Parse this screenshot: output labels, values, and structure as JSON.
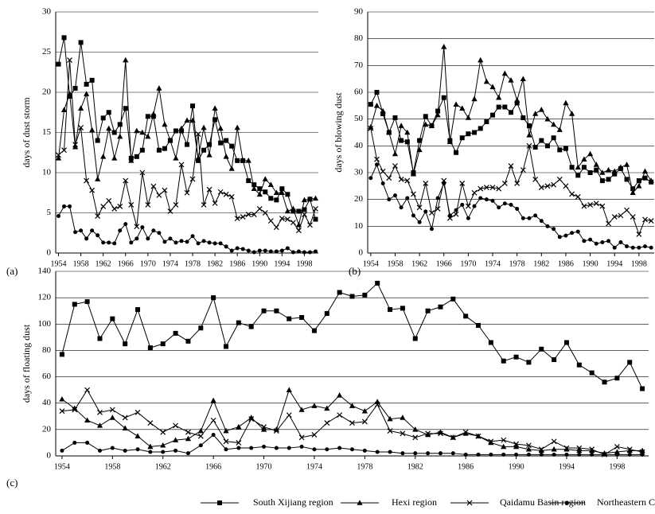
{
  "chart_data": [
    {
      "type": "line",
      "label": "(a)",
      "y_label": "days of dust storm",
      "x": [
        1954,
        1955,
        1956,
        1957,
        1958,
        1959,
        1960,
        1961,
        1962,
        1963,
        1964,
        1965,
        1966,
        1967,
        1968,
        1969,
        1970,
        1971,
        1972,
        1973,
        1974,
        1975,
        1976,
        1977,
        1978,
        1979,
        1980,
        1981,
        1982,
        1983,
        1984,
        1985,
        1986,
        1987,
        1988,
        1989,
        1990,
        1991,
        1992,
        1993,
        1994,
        1995,
        1996,
        1997,
        1998,
        1999,
        2000
      ],
      "xlim": [
        1953.5,
        2000.5
      ],
      "xticks": [
        1954,
        1958,
        1962,
        1966,
        1970,
        1974,
        1978,
        1982,
        1986,
        1990,
        1994,
        1998
      ],
      "ylim": [
        0,
        30
      ],
      "yticks": [
        0,
        5,
        10,
        15,
        20,
        25,
        30
      ],
      "grid": true,
      "series": [
        {
          "color": "#000000",
          "marker": "square",
          "values": [
            23.5,
            26.8,
            19.5,
            20.5,
            26.2,
            21,
            21.5,
            14,
            16.8,
            17.5,
            15,
            16,
            18,
            11.8,
            12,
            12.8,
            17,
            17,
            12.8,
            13,
            14,
            15.2,
            15.2,
            13.5,
            18.3,
            11.5,
            12.8,
            13.5,
            16.6,
            13.7,
            14,
            13.3,
            11.5,
            11.5,
            9,
            8.5,
            8,
            7.6,
            6.8,
            6.6,
            8,
            7.3,
            5.2,
            5.2,
            5.4,
            6.7,
            4.2
          ]
        },
        {
          "color": "#000000",
          "marker": "triangle",
          "values": [
            11.8,
            17.8,
            19.8,
            13.2,
            18,
            19.8,
            15.3,
            9.2,
            12,
            15.5,
            11.8,
            14.5,
            24,
            11.5,
            15.2,
            15,
            14.5,
            17.3,
            20.5,
            16,
            14,
            11.8,
            15.5,
            16.5,
            16.5,
            11.8,
            15.6,
            12.2,
            18,
            15.5,
            12,
            10.5,
            15.6,
            11.5,
            11.5,
            8,
            7.3,
            9.2,
            8.5,
            7.5,
            7.5,
            5.2,
            5.5,
            3.5,
            6.6,
            6.7,
            6.8
          ]
        },
        {
          "color": "#000000",
          "marker": "cross",
          "values": [
            12.2,
            12.8,
            24,
            13.5,
            15.6,
            9,
            7.8,
            4.6,
            5.8,
            6.5,
            5.5,
            5.8,
            9,
            6,
            3.3,
            10,
            6,
            8.3,
            7.2,
            7.8,
            5.2,
            6,
            11,
            7.5,
            9.2,
            14.8,
            6,
            7.9,
            6.2,
            7.6,
            7.3,
            7,
            4.3,
            4.5,
            4.8,
            4.8,
            5.5,
            5,
            4,
            3.2,
            4.3,
            4.2,
            3.8,
            2.8,
            4.8,
            3.5,
            5.5
          ]
        },
        {
          "color": "#000000",
          "marker": "circle",
          "values": [
            4.6,
            5.8,
            5.8,
            2.6,
            2.8,
            1.8,
            2.8,
            2.2,
            1.3,
            1.3,
            1.2,
            2.8,
            3.6,
            1.3,
            1.8,
            3.2,
            1.8,
            2.8,
            2.5,
            1.4,
            1.8,
            1.3,
            1.5,
            1.4,
            2.1,
            1.2,
            1.5,
            1.3,
            1.2,
            1.2,
            0.8,
            0.3,
            0.6,
            0.5,
            0.3,
            0.1,
            0.3,
            0.3,
            0.2,
            0.2,
            0.3,
            0.6,
            0.1,
            0.2,
            0.1,
            0.1,
            0.2
          ]
        }
      ]
    },
    {
      "type": "line",
      "label": "(b)",
      "y_label": "days of blowing dust",
      "x": [
        1954,
        1955,
        1956,
        1957,
        1958,
        1959,
        1960,
        1961,
        1962,
        1963,
        1964,
        1965,
        1966,
        1967,
        1968,
        1969,
        1970,
        1971,
        1972,
        1973,
        1974,
        1975,
        1976,
        1977,
        1978,
        1979,
        1980,
        1981,
        1982,
        1983,
        1984,
        1985,
        1986,
        1987,
        1988,
        1989,
        1990,
        1991,
        1992,
        1993,
        1994,
        1995,
        1996,
        1997,
        1998,
        1999,
        2000
      ],
      "xlim": [
        1953.5,
        2000.5
      ],
      "xticks": [
        1954,
        1958,
        1962,
        1966,
        1970,
        1974,
        1978,
        1982,
        1986,
        1990,
        1994,
        1998
      ],
      "ylim": [
        0,
        90
      ],
      "yticks": [
        0,
        10,
        20,
        30,
        40,
        50,
        60,
        70,
        80,
        90
      ],
      "grid": true,
      "series": [
        {
          "color": "#000000",
          "marker": "square",
          "values": [
            55.5,
            60,
            52,
            45,
            50.5,
            42,
            41.5,
            30,
            42,
            51,
            47.5,
            53,
            58,
            42,
            37.5,
            43,
            44.5,
            45,
            46.5,
            49,
            51.5,
            54.5,
            54.5,
            52.5,
            56,
            50.5,
            47.5,
            39.5,
            42,
            40,
            43,
            38.5,
            39,
            32,
            29,
            32,
            30,
            31,
            27,
            27.5,
            29.5,
            31.5,
            27.5,
            24,
            27,
            28,
            26.5
          ]
        },
        {
          "color": "#000000",
          "marker": "triangle",
          "values": [
            47,
            55,
            53,
            45,
            37,
            47.5,
            45,
            29.5,
            38.5,
            48,
            47.5,
            51.5,
            77,
            41.5,
            55.5,
            54,
            50.5,
            57.5,
            72,
            64,
            62,
            58,
            67,
            64.5,
            57,
            65,
            44,
            52,
            53.5,
            50,
            48,
            46,
            56,
            52,
            32,
            35,
            37,
            33,
            30,
            31,
            30.5,
            32,
            33,
            22.5,
            25,
            30.5,
            27
          ]
        },
        {
          "color": "#000000",
          "marker": "cross",
          "values": [
            46.5,
            35,
            30.5,
            28,
            32.5,
            27.5,
            27,
            22,
            17,
            26,
            15,
            16.5,
            27,
            13,
            14.5,
            26,
            17.5,
            22.5,
            24,
            24.5,
            24.5,
            24,
            26,
            32.5,
            26,
            31,
            40,
            27.5,
            24.5,
            25,
            25.5,
            27.5,
            25,
            22,
            21,
            17.5,
            18,
            18.5,
            17.5,
            11,
            13.5,
            14,
            16,
            13.5,
            7,
            12.5,
            12
          ]
        },
        {
          "color": "#000000",
          "marker": "circle",
          "values": [
            28,
            33,
            26,
            20,
            21.5,
            17,
            20.5,
            14,
            11.5,
            15.5,
            9,
            20.5,
            26,
            14,
            16,
            18,
            13,
            17.5,
            20.5,
            20,
            19.5,
            17,
            18.5,
            18,
            16.5,
            13,
            13,
            14,
            12,
            10,
            9,
            6,
            6.5,
            7.5,
            8,
            4.5,
            5,
            3.5,
            4,
            4.5,
            2,
            4,
            2.5,
            2,
            2,
            2.5,
            2
          ]
        }
      ]
    },
    {
      "type": "line",
      "label": "(c)",
      "y_label": "days of floating dust",
      "x": [
        1954,
        1955,
        1956,
        1957,
        1958,
        1959,
        1960,
        1961,
        1962,
        1963,
        1964,
        1965,
        1966,
        1967,
        1968,
        1969,
        1970,
        1971,
        1972,
        1973,
        1974,
        1975,
        1976,
        1977,
        1978,
        1979,
        1980,
        1981,
        1982,
        1983,
        1984,
        1985,
        1986,
        1987,
        1988,
        1989,
        1990,
        1991,
        1992,
        1993,
        1994,
        1995,
        1996,
        1997,
        1998,
        1999,
        2000
      ],
      "xlim": [
        1953.5,
        2000.5
      ],
      "xticks": [
        1954,
        1958,
        1962,
        1966,
        1970,
        1974,
        1978,
        1982,
        1986,
        1990,
        1994,
        1998
      ],
      "ylim": [
        0,
        140
      ],
      "yticks": [
        0,
        20,
        40,
        60,
        80,
        100,
        120,
        140
      ],
      "grid": true,
      "series": [
        {
          "name": "South Xijiang region",
          "color": "#000000",
          "marker": "square",
          "values": [
            77,
            115,
            117,
            89,
            104,
            85,
            111,
            82,
            85,
            93,
            87,
            97,
            120,
            83,
            101,
            98,
            110,
            110,
            104,
            105,
            95,
            108,
            124,
            121,
            122,
            131,
            111,
            112,
            89,
            110,
            113,
            119,
            106,
            99,
            86,
            72,
            75,
            71,
            81,
            73,
            86,
            69,
            63,
            56,
            59,
            71,
            51
          ]
        },
        {
          "name": "Hexi region",
          "color": "#000000",
          "marker": "triangle",
          "values": [
            43,
            36,
            27,
            23,
            29,
            21,
            15,
            7,
            8,
            12,
            13,
            19,
            42,
            19,
            22,
            29,
            20,
            20,
            50,
            35,
            38,
            36,
            46,
            38,
            34,
            41,
            28,
            29,
            20,
            16,
            18,
            14,
            17,
            15,
            10,
            7,
            7,
            5,
            4,
            5,
            5,
            4,
            4,
            2,
            3,
            4,
            4
          ]
        },
        {
          "name": "Qaidamu Basin region",
          "color": "#000000",
          "marker": "cross",
          "values": [
            34,
            35,
            50,
            33,
            35,
            29,
            33,
            25,
            18,
            23,
            18,
            15,
            27,
            11,
            10,
            28,
            22,
            19,
            31,
            14,
            16,
            25,
            31,
            25,
            26,
            39,
            19,
            17,
            14,
            17,
            17,
            14,
            18,
            15,
            11,
            12,
            9,
            8,
            5,
            11,
            6,
            6,
            5,
            1,
            7,
            5,
            3
          ]
        },
        {
          "name": "Northeastern China",
          "color": "#000000",
          "marker": "circle",
          "values": [
            4,
            10,
            10,
            4,
            6,
            4,
            5,
            3,
            3,
            4,
            2,
            8,
            16,
            5,
            6,
            6,
            7,
            6,
            6,
            7,
            5,
            5,
            6,
            5,
            4,
            3,
            3,
            2,
            2,
            2,
            2,
            2,
            1,
            1,
            1,
            1,
            1,
            1,
            1,
            1,
            1,
            1,
            1,
            1,
            1,
            1,
            1
          ]
        }
      ]
    }
  ]
}
